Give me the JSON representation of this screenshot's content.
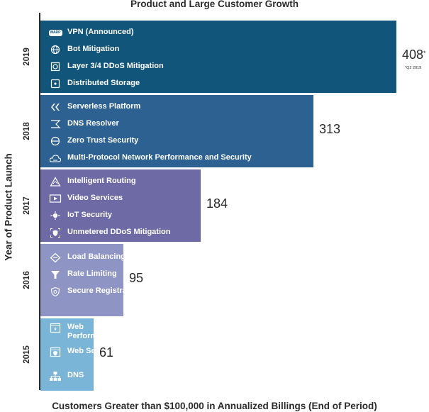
{
  "chart_data": {
    "type": "bar",
    "orientation": "horizontal",
    "title": "Product and Large Customer Growth",
    "xlabel": "Customers Greater than $100,000 in Annualized Billings (End of Period)",
    "ylabel": "Year of Product Launch",
    "xlim": [
      0,
      440
    ],
    "categories": [
      "2019",
      "2018",
      "2017",
      "2016",
      "2015"
    ],
    "values": [
      408,
      313,
      184,
      95,
      61
    ],
    "value_labels": [
      "408",
      "313",
      "184",
      "95",
      "61"
    ],
    "colors": [
      "#11557a",
      "#2c6191",
      "#6e6aa6",
      "#8e95c4",
      "#7ab4d6"
    ],
    "annotation": {
      "star": "*",
      "note": "*Q2 2019"
    },
    "features": [
      [
        {
          "icon": "warp-badge-icon",
          "badge": "WARP",
          "label": "VPN (Announced)"
        },
        {
          "icon": "globe-icon",
          "label": "Bot Mitigation"
        },
        {
          "icon": "shield-layers-icon",
          "label": "Layer 3/4 DDoS Mitigation"
        },
        {
          "icon": "storage-icon",
          "label": "Distributed Storage"
        }
      ],
      [
        {
          "icon": "serverless-icon",
          "label": "Serverless Platform"
        },
        {
          "icon": "dns-flag-icon",
          "label": "DNS Resolver"
        },
        {
          "icon": "zero-trust-icon",
          "label": "Zero Trust Security"
        },
        {
          "icon": "network-cloud-icon",
          "label": "Multi-Protocol Network Performance and Security"
        }
      ],
      [
        {
          "icon": "routing-icon",
          "label": "Intelligent Routing"
        },
        {
          "icon": "video-icon",
          "label": "Video Services"
        },
        {
          "icon": "iot-icon",
          "label": "IoT Security"
        },
        {
          "icon": "ddos-shield-icon",
          "label": "Unmetered DDoS Mitigation"
        }
      ],
      [
        {
          "icon": "load-balancing-icon",
          "label": "Load Balancing"
        },
        {
          "icon": "rate-limiting-icon",
          "label": "Rate Limiting"
        },
        {
          "icon": "registrar-icon",
          "label": "Secure Registrar"
        }
      ],
      [
        {
          "icon": "web-performance-icon",
          "label": "Web Performance"
        },
        {
          "icon": "web-security-icon",
          "label": "Web Security"
        },
        {
          "icon": "dns-icon",
          "label": "DNS"
        }
      ]
    ]
  }
}
